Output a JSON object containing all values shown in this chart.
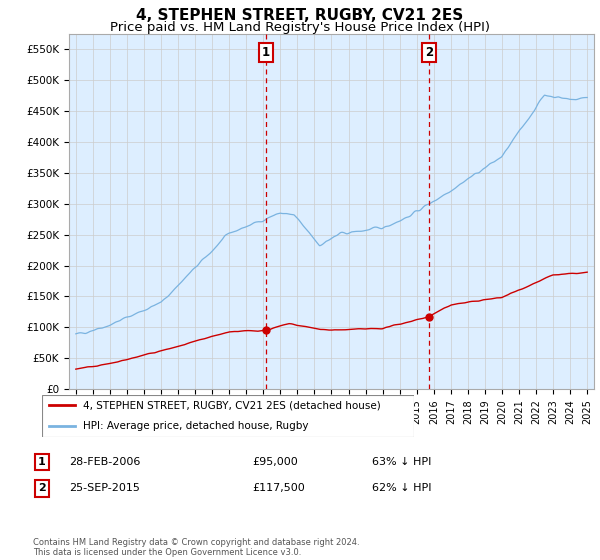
{
  "title": "4, STEPHEN STREET, RUGBY, CV21 2ES",
  "subtitle": "Price paid vs. HM Land Registry's House Price Index (HPI)",
  "ylim": [
    0,
    575000
  ],
  "yticks": [
    0,
    50000,
    100000,
    150000,
    200000,
    250000,
    300000,
    350000,
    400000,
    450000,
    500000,
    550000
  ],
  "ytick_labels": [
    "£0",
    "£50K",
    "£100K",
    "£150K",
    "£200K",
    "£250K",
    "£300K",
    "£350K",
    "£400K",
    "£450K",
    "£500K",
    "£550K"
  ],
  "hpi_color": "#7ab3e0",
  "price_color": "#cc0000",
  "vline_color": "#cc0000",
  "grid_color": "#cccccc",
  "bg_color": "#ddeeff",
  "plot_bg": "#ffffff",
  "annotation_box_color": "#cc0000",
  "sale1_date_num": 2006.15,
  "sale1_price": 95000,
  "sale1_label": "1",
  "sale2_date_num": 2015.73,
  "sale2_price": 117500,
  "sale2_label": "2",
  "legend_line1": "4, STEPHEN STREET, RUGBY, CV21 2ES (detached house)",
  "legend_line2": "HPI: Average price, detached house, Rugby",
  "table_row1": [
    "1",
    "28-FEB-2006",
    "£95,000",
    "63% ↓ HPI"
  ],
  "table_row2": [
    "2",
    "25-SEP-2015",
    "£117,500",
    "62% ↓ HPI"
  ],
  "footer": "Contains HM Land Registry data © Crown copyright and database right 2024.\nThis data is licensed under the Open Government Licence v3.0.",
  "title_fontsize": 11,
  "subtitle_fontsize": 9.5,
  "xlim_left": 1994.6,
  "xlim_right": 2025.4
}
